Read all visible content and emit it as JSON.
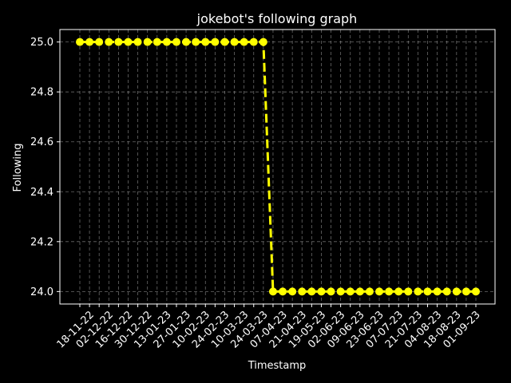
{
  "chart_data": {
    "type": "line",
    "title": "jokebot's following graph",
    "xlabel": "Timestamp",
    "ylabel": "Following",
    "ylim": [
      23.95,
      25.05
    ],
    "yticks": [
      "24.0",
      "24.2",
      "24.4",
      "24.6",
      "24.8",
      "25.0"
    ],
    "grid": true,
    "x_tick_labels": [
      "18-11-22",
      "02-12-22",
      "16-12-22",
      "30-12-22",
      "13-01-23",
      "27-01-23",
      "10-02-23",
      "24-02-23",
      "10-03-23",
      "24-03-23",
      "07-04-23",
      "21-04-23",
      "19-05-23",
      "02-06-23",
      "09-06-23",
      "23-06-23",
      "07-07-23",
      "21-07-23",
      "04-08-23",
      "18-08-23",
      "01-09-23"
    ],
    "series": [
      {
        "values": [
          25,
          25,
          25,
          25,
          25,
          25,
          25,
          25,
          25,
          25,
          25,
          25,
          25,
          25,
          25,
          25,
          25,
          25,
          25,
          25,
          24,
          24,
          24,
          24,
          24,
          24,
          24,
          24,
          24,
          24,
          24,
          24,
          24,
          24,
          24,
          24,
          24,
          24,
          24,
          24,
          24,
          24
        ],
        "style": {
          "color": "#ffff00",
          "linestyle": "dashed",
          "marker": "o"
        }
      }
    ]
  }
}
